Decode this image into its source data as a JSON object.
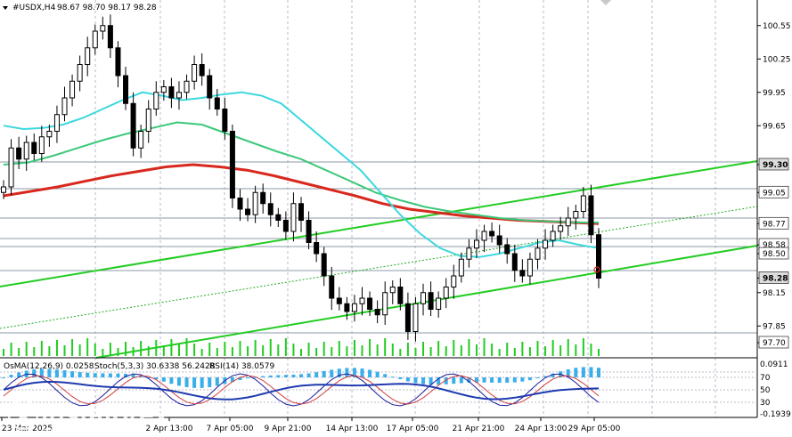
{
  "header": {
    "symbol": "#USDX,H4",
    "ohlc": "98.67 98.70 98.17 98.28"
  },
  "indicator_header": {
    "osma": "OsMA(12,26,9) 0.0258",
    "stoch": "Stoch(5,3,3) 30.6338 56.2428",
    "rsi": "RSI(14) 38.0579"
  },
  "watermark": {
    "brand": "instaforex",
    "tagline": "Instant Forex Trading"
  },
  "colors": {
    "bull": "#000000",
    "bear": "#000000",
    "ma_cyan": "#3cd8de",
    "ma_green": "#3cc87a",
    "ma_red": "#d8281e",
    "channel": "#22cc22",
    "volume": "#22cc22",
    "osma": "#3aaeea",
    "stoch_main": "#1a1a9a",
    "stoch_signal": "#d04040",
    "rsi": "#1e3ab0",
    "grid": "#b8b8c8",
    "hline": "#8c9aa8",
    "price_box": "#ffffff"
  },
  "chart_data": {
    "type": "candlestick",
    "symbol": "#USDX",
    "timeframe": "H4",
    "ylim": [
      97.58,
      100.78
    ],
    "y_ticks": [
      "100.55",
      "100.25",
      "99.95",
      "99.65",
      "99.30",
      "99.05",
      "98.77",
      "98.58",
      "98.50",
      "98.28",
      "98.15",
      "97.85",
      "97.70"
    ],
    "x_ticks": [
      "23 Mar 2025",
      "2 Apr 13:00",
      "7 Apr 05:00",
      "9 Apr 21:00",
      "14 Apr 13:00",
      "17 Apr 05:00",
      "21 Apr 21:00",
      "24 Apr 13:00",
      "29 Apr 05:00"
    ],
    "horizontal_levels": [
      {
        "label": "99.30",
        "value": 99.3,
        "highlight": true
      },
      {
        "label": "99.05",
        "value": 99.05,
        "highlight": false
      },
      {
        "label": "98.77",
        "value": 98.77,
        "highlight": false
      },
      {
        "label": "98.58",
        "value": 98.58,
        "highlight": false
      },
      {
        "label": "98.50",
        "value": 98.5,
        "highlight": false
      },
      {
        "label": "98.28",
        "value": 98.28,
        "highlight": true
      },
      {
        "label": "97.70",
        "value": 97.7,
        "highlight": false
      }
    ],
    "closes": [
      99.1,
      99.45,
      99.35,
      99.5,
      99.4,
      99.55,
      99.6,
      99.75,
      99.9,
      100.05,
      100.2,
      100.35,
      100.5,
      100.55,
      100.35,
      100.1,
      99.85,
      99.45,
      99.6,
      99.8,
      99.95,
      100.0,
      99.9,
      99.95,
      100.05,
      100.2,
      100.1,
      99.9,
      99.8,
      99.6,
      99.0,
      98.9,
      98.85,
      99.05,
      98.95,
      98.85,
      98.8,
      98.7,
      98.95,
      98.8,
      98.6,
      98.5,
      98.3,
      98.1,
      98.05,
      97.98,
      98.05,
      98.1,
      98.0,
      97.95,
      98.15,
      98.2,
      98.05,
      97.8,
      98.05,
      98.15,
      98.0,
      98.1,
      98.2,
      98.3,
      98.45,
      98.55,
      98.62,
      98.7,
      98.66,
      98.58,
      98.5,
      98.35,
      98.3,
      98.45,
      98.55,
      98.62,
      98.7,
      98.75,
      98.82,
      98.88,
      99.02,
      98.67,
      98.28
    ],
    "ma_fast_cyan": [
      99.65,
      99.62,
      99.63,
      99.66,
      99.72,
      99.8,
      99.88,
      99.95,
      99.92,
      99.88,
      99.9,
      99.93,
      99.95,
      99.92,
      99.85,
      99.7,
      99.55,
      99.4,
      99.25,
      99.05,
      98.85,
      98.68,
      98.55,
      98.48,
      98.47,
      98.5,
      98.55,
      98.6,
      98.62,
      98.58,
      98.55
    ],
    "ma_mid_green": [
      99.3,
      99.32,
      99.38,
      99.45,
      99.52,
      99.58,
      99.63,
      99.68,
      99.66,
      99.58,
      99.5,
      99.42,
      99.35,
      99.25,
      99.15,
      99.05,
      98.98,
      98.92,
      98.88,
      98.85,
      98.82,
      98.8,
      98.79,
      98.78,
      98.78
    ],
    "ma_slow_red": [
      99.02,
      99.06,
      99.1,
      99.15,
      99.2,
      99.24,
      99.28,
      99.3,
      99.28,
      99.25,
      99.2,
      99.14,
      99.08,
      99.02,
      98.95,
      98.9,
      98.87,
      98.84,
      98.82,
      98.8,
      98.79,
      98.78,
      98.77
    ]
  },
  "indicator_scale": {
    "left_top": "0.0911",
    "left_bottom": "-0.1939",
    "levels": [
      "70",
      "50",
      "30"
    ]
  }
}
